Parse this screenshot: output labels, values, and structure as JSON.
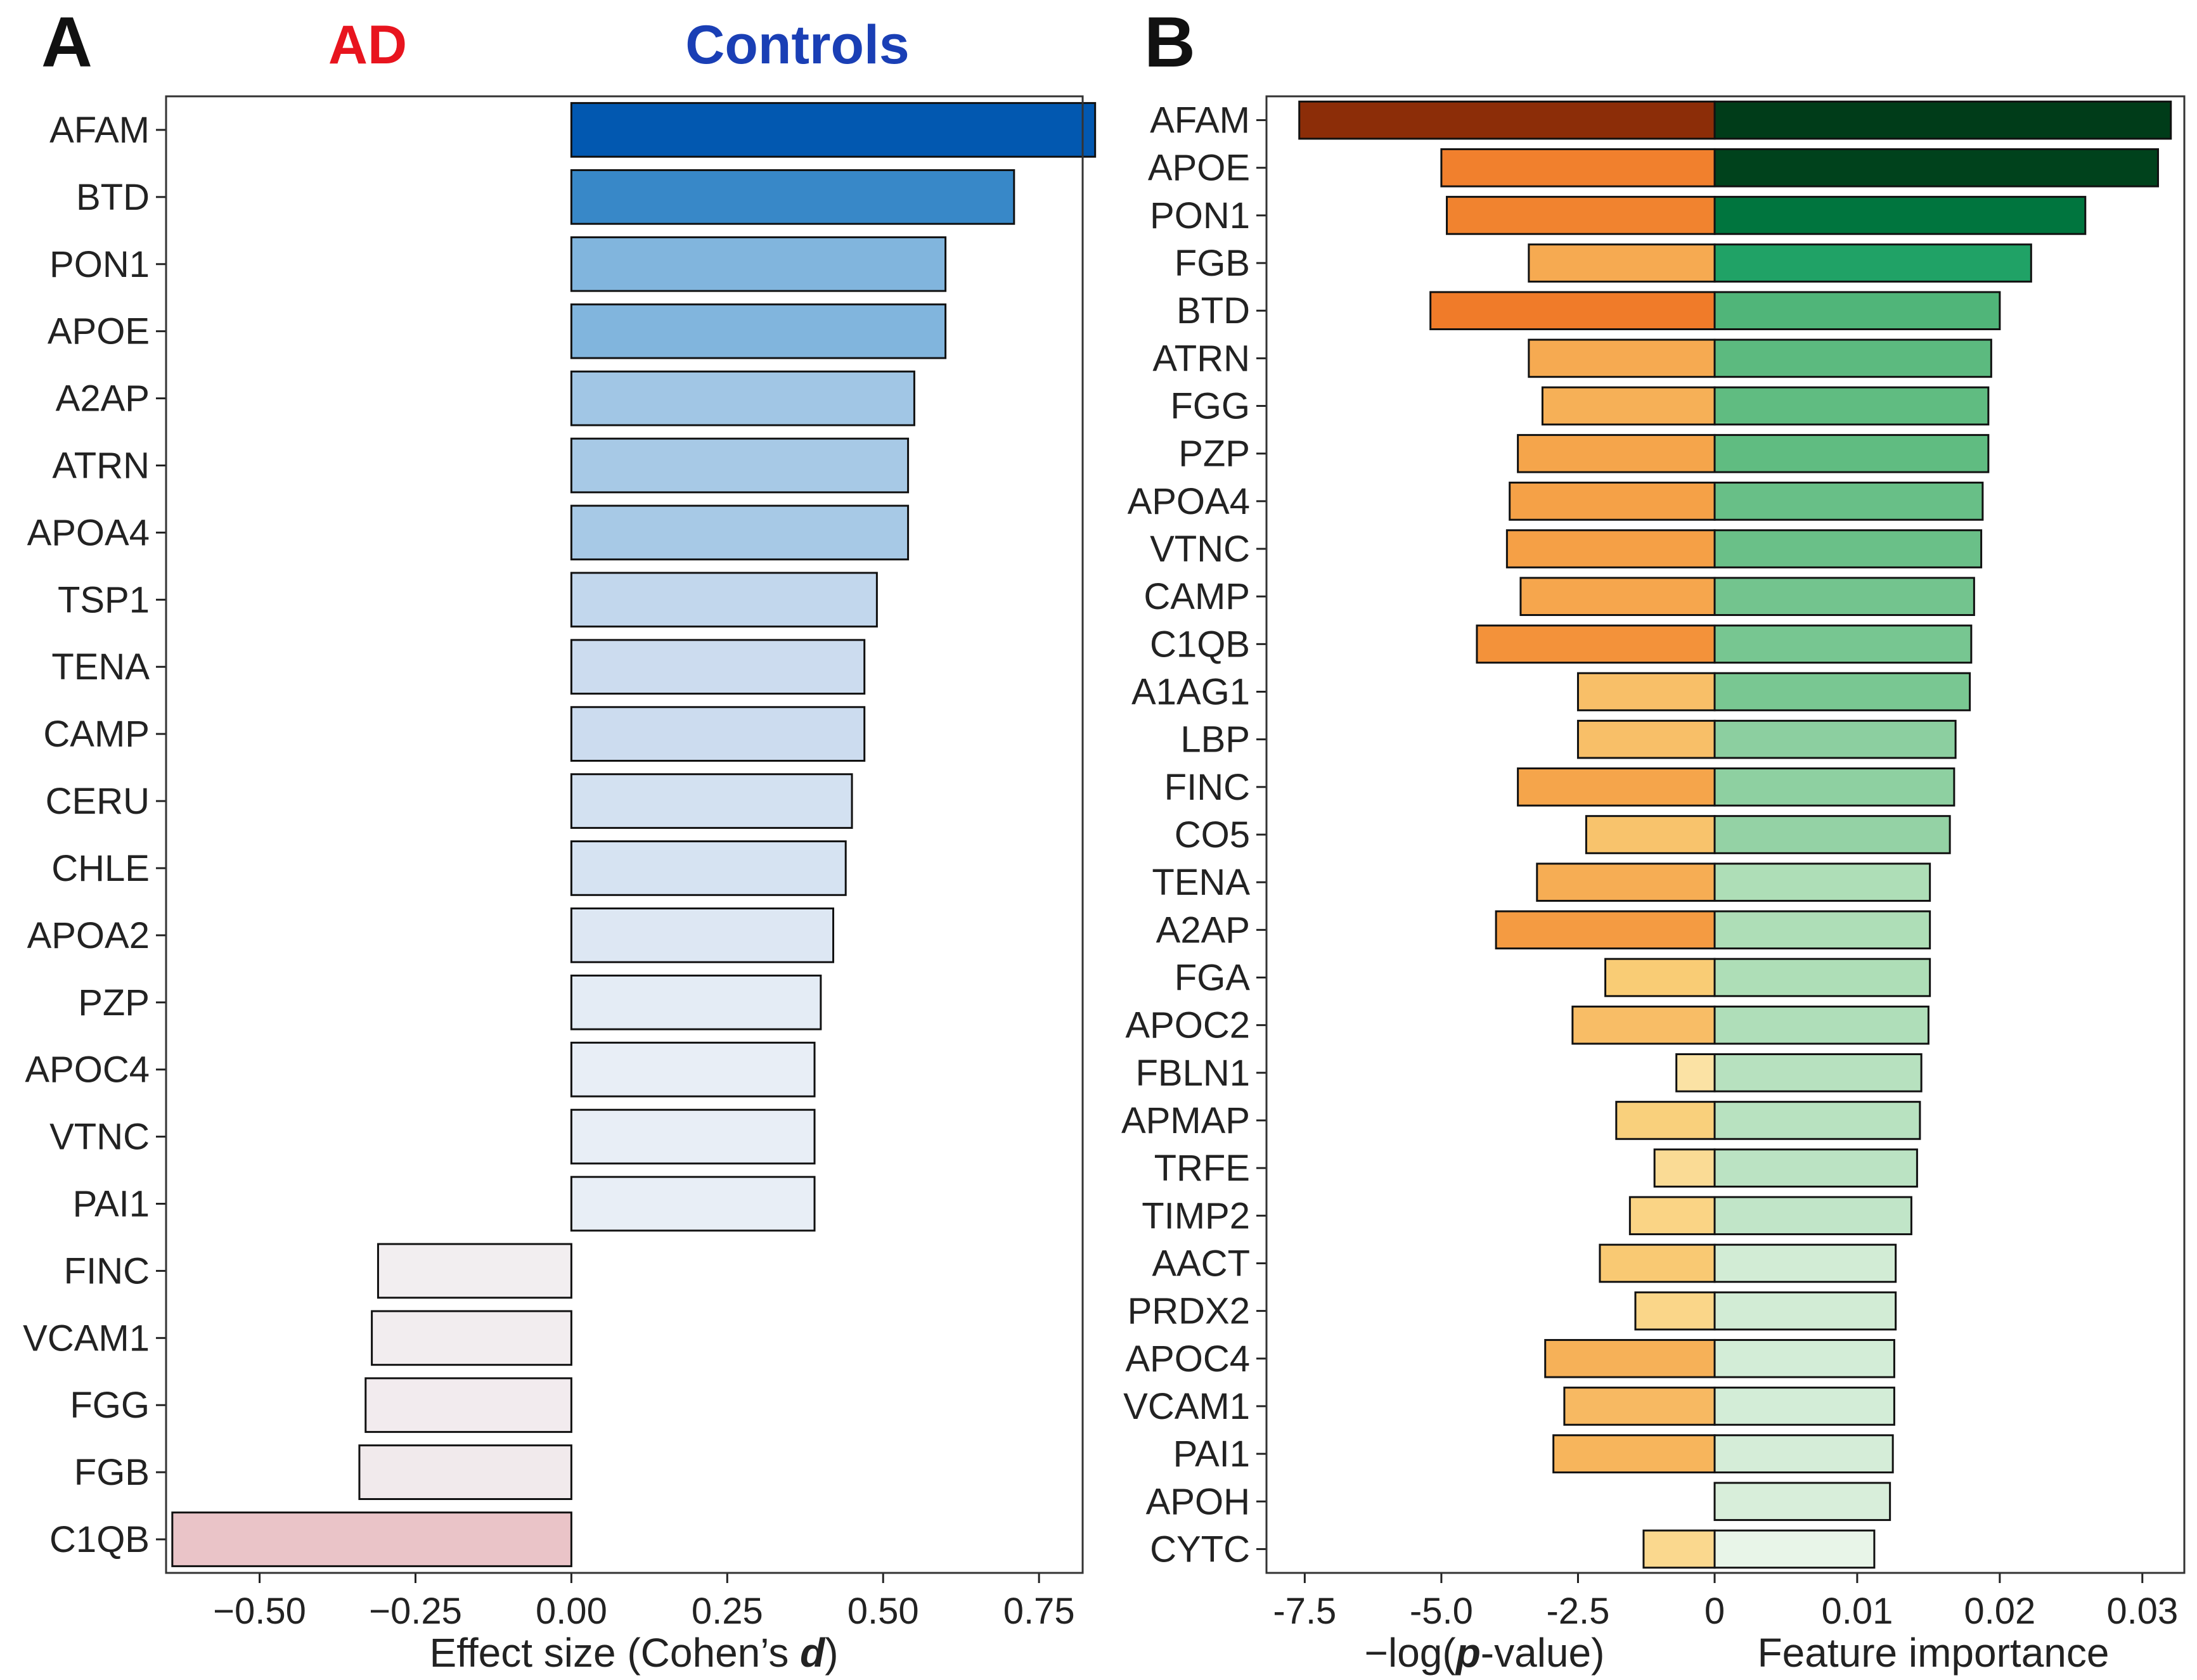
{
  "chart_data": [
    {
      "type": "bar",
      "orientation": "horizontal",
      "panel_label": "A",
      "left_group_label": "AD",
      "right_group_label": "Controls",
      "left_group_color": "#e8141e",
      "right_group_color": "#1a3fb5",
      "xlabel_main": "Effect  size (Cohen’s ",
      "xlabel_var": "d",
      "xlabel_end": ")",
      "xlim": [
        -0.65,
        0.82
      ],
      "xticks": [
        -0.5,
        -0.25,
        0.0,
        0.25,
        0.5,
        0.75
      ],
      "xtick_labels": [
        "−0.50",
        "−0.25",
        "0.00",
        "0.25",
        "0.50",
        "0.75"
      ],
      "grid": false,
      "categories": [
        "AFAM",
        "BTD",
        "PON1",
        "APOE",
        "A2AP",
        "ATRN",
        "APOA4",
        "TSP1",
        "TENA",
        "CAMP",
        "CERU",
        "CHLE",
        "APOA2",
        "PZP",
        "APOC4",
        "VTNC",
        "PAI1",
        "FINC",
        "VCAM1",
        "FGG",
        "FGB",
        "C1QB"
      ],
      "values": [
        0.84,
        0.71,
        0.6,
        0.6,
        0.55,
        0.54,
        0.54,
        0.49,
        0.47,
        0.47,
        0.45,
        0.44,
        0.42,
        0.4,
        0.39,
        0.39,
        0.39,
        -0.31,
        -0.32,
        -0.33,
        -0.34,
        -0.64
      ]
    },
    {
      "type": "bar",
      "orientation": "horizontal",
      "panel_label": "B",
      "xlabel_left_pre": "−log(",
      "xlabel_left_var": "p",
      "xlabel_left_post": "-value)",
      "xlabel_right": "Feature importance",
      "xlim_left": [
        -8.2,
        0
      ],
      "xlim_right": [
        0,
        0.0325
      ],
      "xticks_left": [
        -7.5,
        -5.0,
        -2.5,
        0
      ],
      "xtick_labels_left": [
        "-7.5",
        "-5.0",
        "-2.5",
        "0"
      ],
      "xticks_right": [
        0.01,
        0.02,
        0.03
      ],
      "xtick_labels_right": [
        "0.01",
        "0.02",
        "0.03"
      ],
      "grid": false,
      "categories": [
        "AFAM",
        "APOE",
        "PON1",
        "FGB",
        "BTD",
        "ATRN",
        "FGG",
        "PZP",
        "APOA4",
        "VTNC",
        "CAMP",
        "C1QB",
        "A1AG1",
        "LBP",
        "FINC",
        "CO5",
        "TENA",
        "A2AP",
        "FGA",
        "APOC2",
        "FBLN1",
        "APMAP",
        "TRFE",
        "TIMP2",
        "AACT",
        "PRDX2",
        "APOC4",
        "VCAM1",
        "PAI1",
        "APOH",
        "CYTC"
      ],
      "series": [
        {
          "name": "−log(p-value)",
          "values": [
            -7.6,
            -5.0,
            -4.9,
            -3.4,
            -5.2,
            -3.4,
            -3.15,
            -3.6,
            -3.75,
            -3.8,
            -3.55,
            -4.35,
            -2.5,
            -2.5,
            -3.6,
            -2.35,
            -3.25,
            -4.0,
            -2.0,
            -2.6,
            -0.7,
            -1.8,
            -1.1,
            -1.55,
            -2.1,
            -1.45,
            -3.1,
            -2.75,
            -2.95,
            0.0,
            -1.3
          ]
        },
        {
          "name": "Feature importance",
          "values": [
            0.032,
            0.0311,
            0.026,
            0.0222,
            0.02,
            0.0194,
            0.0192,
            0.0192,
            0.0188,
            0.0187,
            0.0182,
            0.018,
            0.0179,
            0.0169,
            0.0168,
            0.0165,
            0.0151,
            0.0151,
            0.0151,
            0.015,
            0.0145,
            0.0144,
            0.0142,
            0.0138,
            0.0127,
            0.0127,
            0.0126,
            0.0126,
            0.0125,
            0.0123,
            0.0112
          ]
        }
      ]
    }
  ]
}
